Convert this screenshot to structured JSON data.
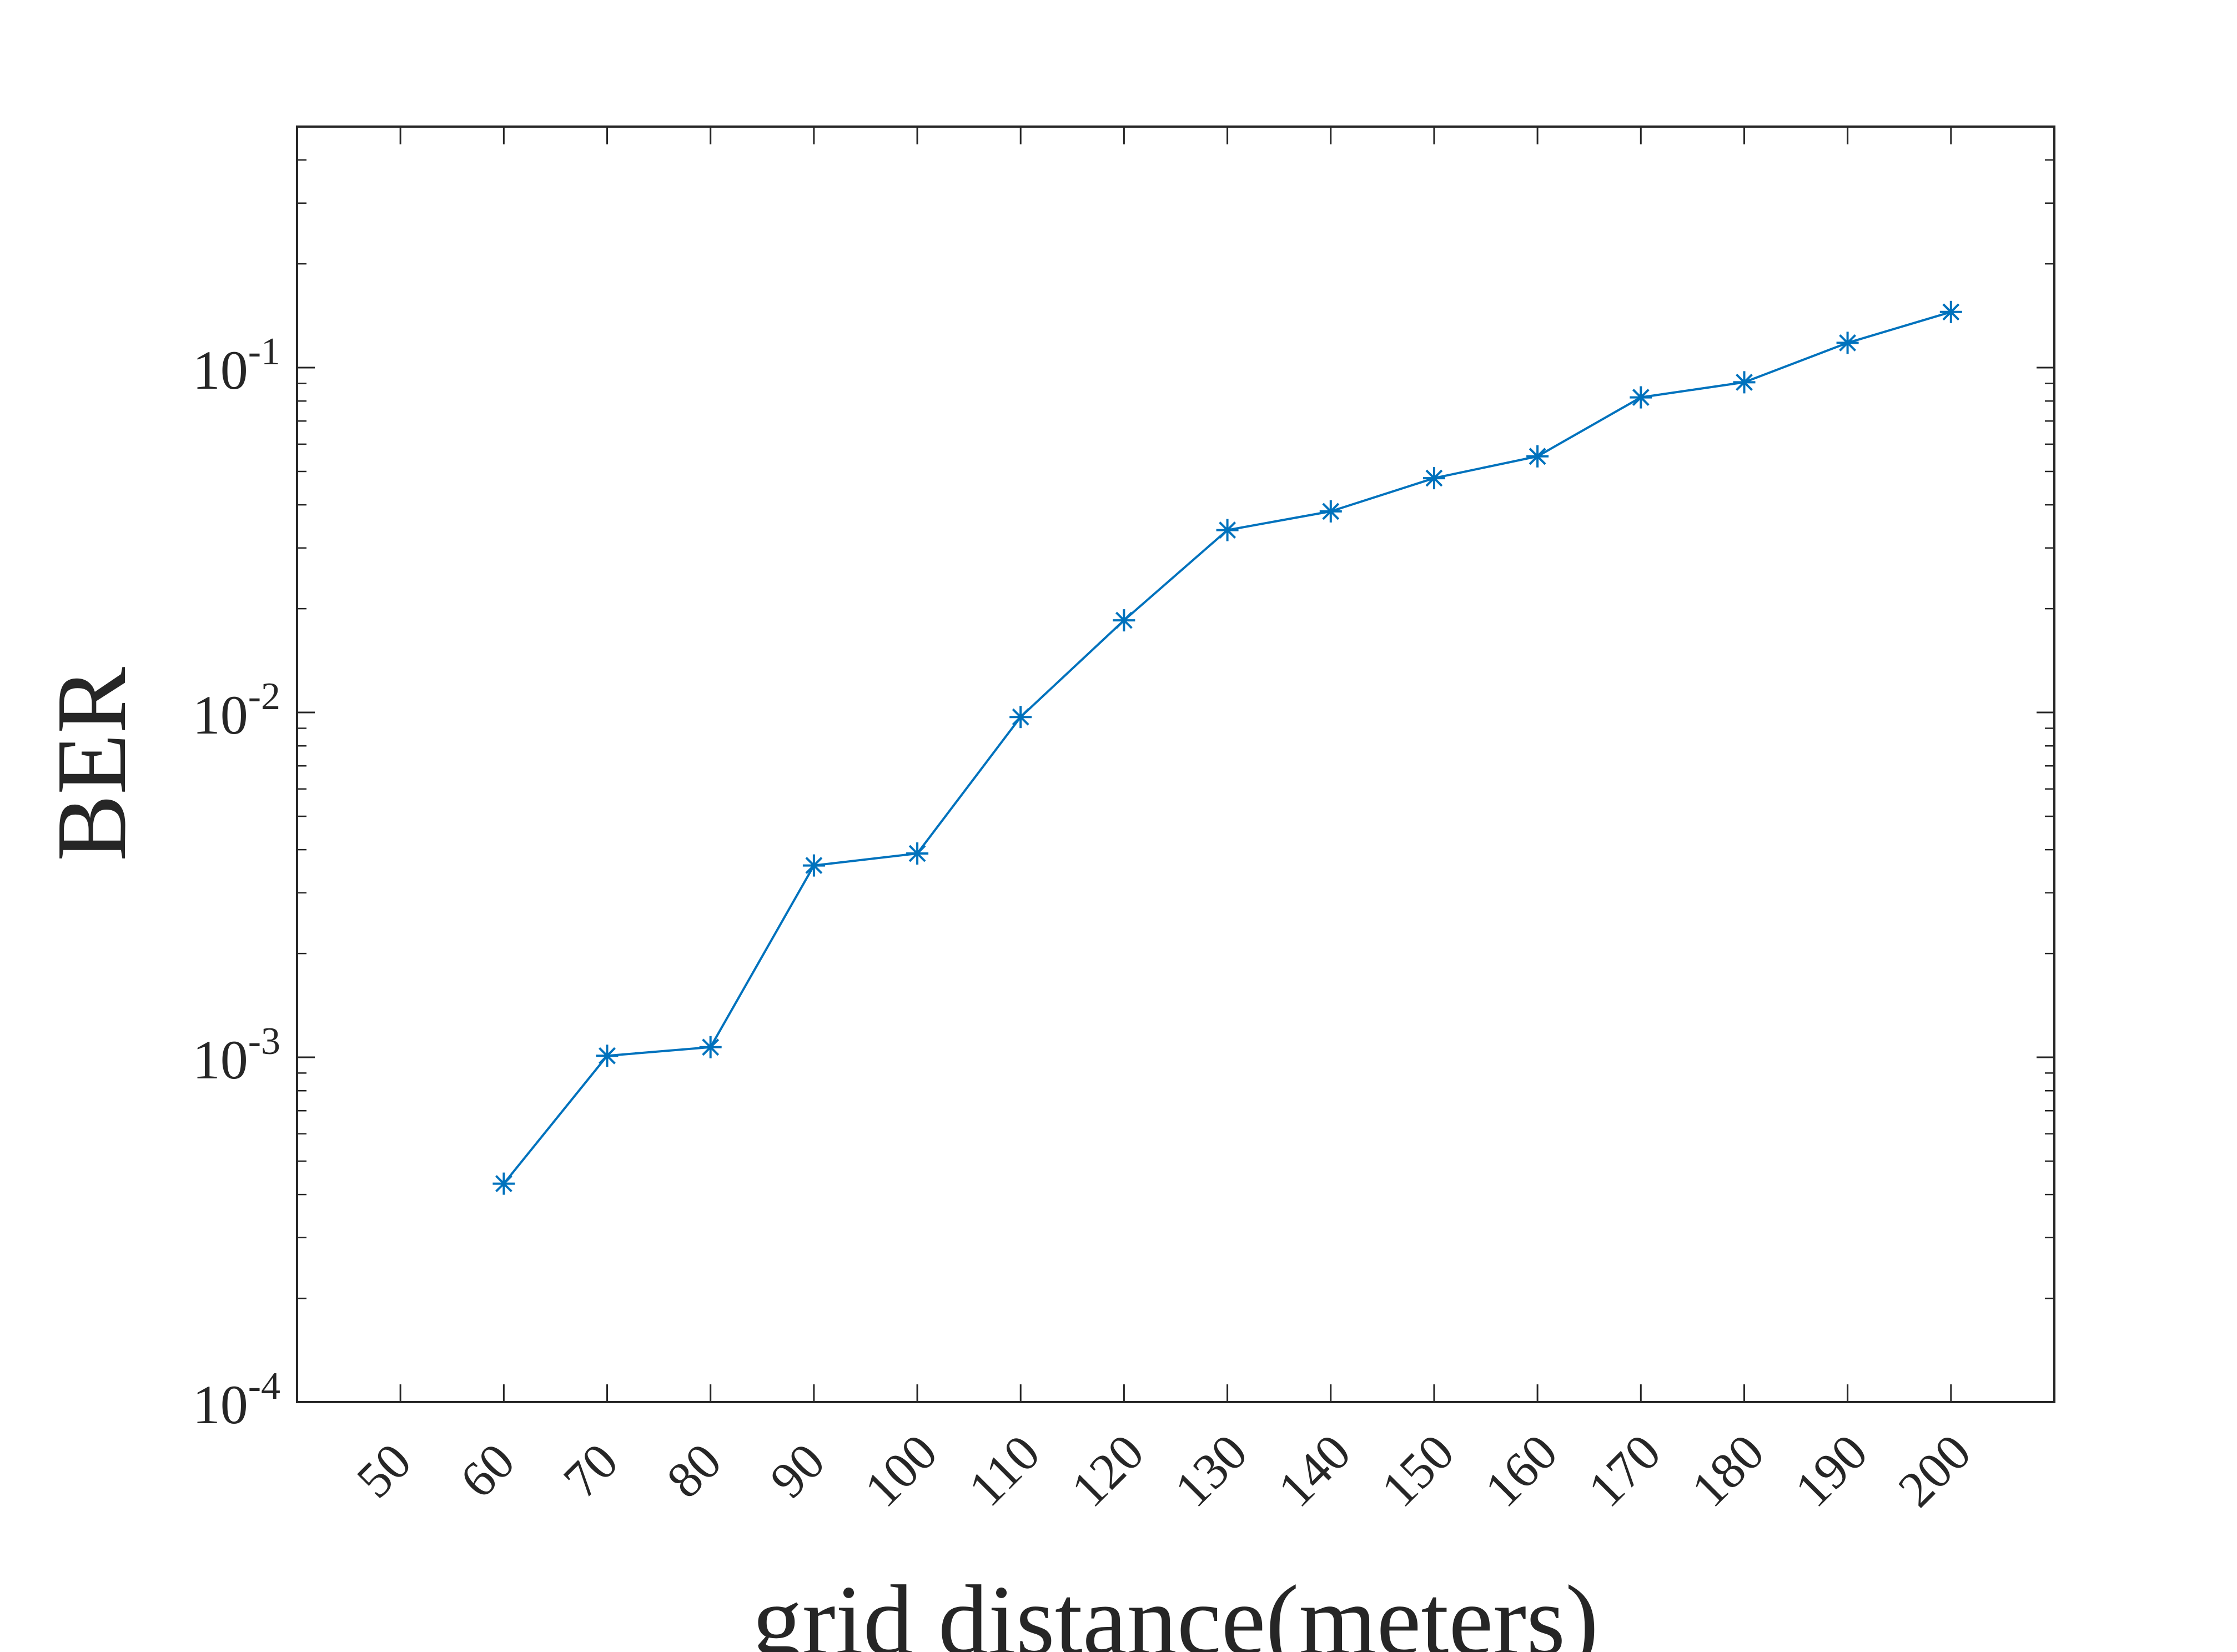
{
  "chart_data": {
    "type": "line",
    "title": "",
    "xlabel": "grid distance(meters)",
    "ylabel": "BER",
    "x_scale": "linear",
    "y_scale": "log",
    "xlim": [
      40,
      210
    ],
    "ylim": [
      0.0001,
      0.5
    ],
    "x_ticks": [
      "50",
      "60",
      "70",
      "80",
      "90",
      "100",
      "110",
      "120",
      "130",
      "140",
      "150",
      "160",
      "170",
      "180",
      "190",
      "200"
    ],
    "y_ticks": [
      {
        "base": "10",
        "exp": "-4",
        "value": 0.0001
      },
      {
        "base": "10",
        "exp": "-3",
        "value": 0.001
      },
      {
        "base": "10",
        "exp": "-2",
        "value": 0.01
      },
      {
        "base": "10",
        "exp": "-1",
        "value": 0.1
      }
    ],
    "grid": false,
    "box": true,
    "marker": "asterisk",
    "series": [
      {
        "color": "#0072BD",
        "x": [
          60,
          70,
          80,
          90,
          100,
          110,
          120,
          130,
          140,
          150,
          160,
          170,
          180,
          190,
          200
        ],
        "y": [
          0.00043,
          0.00101,
          0.00107,
          0.0036,
          0.0039,
          0.0097,
          0.0185,
          0.0338,
          0.0383,
          0.0478,
          0.0553,
          0.082,
          0.0907,
          0.118,
          0.145
        ]
      }
    ]
  }
}
